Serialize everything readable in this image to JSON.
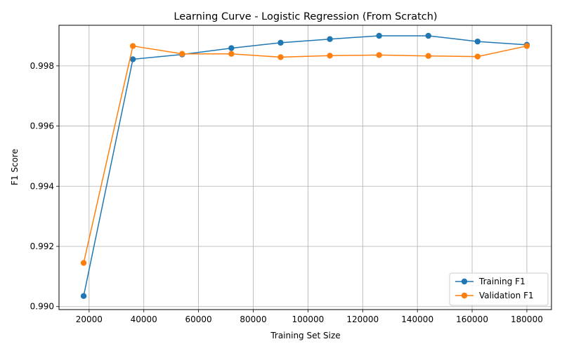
{
  "chart_data": {
    "type": "line",
    "title": "Learning Curve - Logistic Regression (From Scratch)",
    "xlabel": "Training Set Size",
    "ylabel": "F1 Score",
    "xlim": [
      9000,
      189000
    ],
    "ylim": [
      0.9899,
      0.99935
    ],
    "xticks": [
      20000,
      40000,
      60000,
      80000,
      100000,
      120000,
      140000,
      160000,
      180000
    ],
    "yticks": [
      0.99,
      0.992,
      0.994,
      0.996,
      0.998
    ],
    "ytick_decimals": 3,
    "grid": true,
    "legend_position": "lower-right",
    "x": [
      18000,
      36000,
      54000,
      72000,
      90000,
      108000,
      126000,
      144000,
      162000,
      180000
    ],
    "series": [
      {
        "name": "Training F1",
        "color": "#1f77b4",
        "marker": "circle",
        "values": [
          0.99035,
          0.99822,
          0.99838,
          0.99859,
          0.99877,
          0.99889,
          0.999,
          0.999,
          0.99881,
          0.9987
        ]
      },
      {
        "name": "Validation F1",
        "color": "#ff7f0e",
        "marker": "circle",
        "values": [
          0.99145,
          0.99866,
          0.9984,
          0.9984,
          0.99829,
          0.99834,
          0.99836,
          0.99833,
          0.99831,
          0.99866
        ]
      }
    ]
  }
}
